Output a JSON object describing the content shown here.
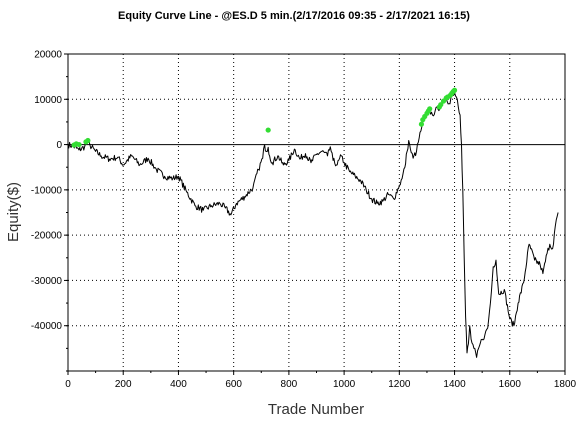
{
  "chart_data": {
    "type": "line",
    "title": "Equity Curve Line - @ES.D 5 min.(2/17/2016 09:35 - 2/17/2021 16:15)",
    "xlabel": "Trade Number",
    "ylabel": "Equity($)",
    "xlim": [
      0,
      1800
    ],
    "ylim": [
      -50000,
      20000
    ],
    "x_ticks": [
      0,
      200,
      400,
      600,
      800,
      1000,
      1200,
      1400,
      1600,
      1800
    ],
    "x_tick_labels": [
      "0",
      "200",
      "400",
      "600",
      "800",
      "1000",
      "1200",
      "1400",
      "1600",
      "1800"
    ],
    "y_ticks": [
      20000,
      10000,
      0,
      -10000,
      -20000,
      -30000,
      -40000
    ],
    "y_tick_labels": [
      "20000",
      "10000",
      "0",
      "-10000",
      "-20000",
      "-30000",
      "-40000"
    ],
    "grid": true,
    "grid_style": "dotted",
    "colors": {
      "line": "#000000",
      "new_high_marker": "#33dd33",
      "grid": "#000000"
    },
    "series": [
      {
        "values": [
          [
            0,
            0
          ],
          [
            20,
            -400
          ],
          [
            40,
            -1200
          ],
          [
            60,
            -500
          ],
          [
            70,
            800
          ],
          [
            80,
            -200
          ],
          [
            100,
            -1500
          ],
          [
            120,
            -2500
          ],
          [
            150,
            -3200
          ],
          [
            180,
            -2800
          ],
          [
            200,
            -4500
          ],
          [
            230,
            -2500
          ],
          [
            260,
            -4500
          ],
          [
            290,
            -3000
          ],
          [
            320,
            -5500
          ],
          [
            350,
            -7000
          ],
          [
            380,
            -7500
          ],
          [
            400,
            -7000
          ],
          [
            430,
            -10500
          ],
          [
            460,
            -13500
          ],
          [
            490,
            -14500
          ],
          [
            520,
            -13500
          ],
          [
            550,
            -13000
          ],
          [
            570,
            -14000
          ],
          [
            590,
            -15500
          ],
          [
            610,
            -13000
          ],
          [
            640,
            -11500
          ],
          [
            670,
            -9500
          ],
          [
            690,
            -5500
          ],
          [
            705,
            -3000
          ],
          [
            712,
            0
          ],
          [
            718,
            -1500
          ],
          [
            725,
            -600
          ],
          [
            730,
            -2500
          ],
          [
            740,
            -4000
          ],
          [
            760,
            -2500
          ],
          [
            780,
            -4500
          ],
          [
            800,
            -3500
          ],
          [
            820,
            -1000
          ],
          [
            840,
            -3200
          ],
          [
            860,
            -2000
          ],
          [
            880,
            -4000
          ],
          [
            900,
            -2200
          ],
          [
            920,
            -1500
          ],
          [
            940,
            -2500
          ],
          [
            950,
            -500
          ],
          [
            960,
            -3500
          ],
          [
            975,
            -4500
          ],
          [
            990,
            -2500
          ],
          [
            1000,
            -4000
          ],
          [
            1020,
            -6000
          ],
          [
            1040,
            -7000
          ],
          [
            1060,
            -8000
          ],
          [
            1080,
            -10000
          ],
          [
            1100,
            -12000
          ],
          [
            1120,
            -13000
          ],
          [
            1140,
            -12500
          ],
          [
            1160,
            -11000
          ],
          [
            1180,
            -12000
          ],
          [
            1200,
            -9000
          ],
          [
            1210,
            -7500
          ],
          [
            1220,
            -5000
          ],
          [
            1228,
            -1500
          ],
          [
            1234,
            900
          ],
          [
            1240,
            -1000
          ],
          [
            1250,
            -3000
          ],
          [
            1262,
            -1500
          ],
          [
            1272,
            1500
          ],
          [
            1278,
            3000
          ],
          [
            1285,
            5000
          ],
          [
            1292,
            5800
          ],
          [
            1300,
            6800
          ],
          [
            1310,
            7500
          ],
          [
            1320,
            6500
          ],
          [
            1330,
            7500
          ],
          [
            1340,
            7800
          ],
          [
            1350,
            8800
          ],
          [
            1360,
            9500
          ],
          [
            1370,
            10200
          ],
          [
            1380,
            9000
          ],
          [
            1390,
            11000
          ],
          [
            1400,
            11500
          ],
          [
            1410,
            10000
          ],
          [
            1420,
            6500
          ],
          [
            1425,
            0
          ],
          [
            1430,
            -10000
          ],
          [
            1435,
            -25000
          ],
          [
            1440,
            -38000
          ],
          [
            1445,
            -46000
          ],
          [
            1450,
            -44000
          ],
          [
            1455,
            -40000
          ],
          [
            1460,
            -43000
          ],
          [
            1470,
            -45000
          ],
          [
            1480,
            -47000
          ],
          [
            1490,
            -44500
          ],
          [
            1500,
            -43000
          ],
          [
            1510,
            -42000
          ],
          [
            1520,
            -40500
          ],
          [
            1530,
            -35000
          ],
          [
            1540,
            -27000
          ],
          [
            1550,
            -25500
          ],
          [
            1560,
            -33000
          ],
          [
            1580,
            -32000
          ],
          [
            1600,
            -38500
          ],
          [
            1615,
            -40000
          ],
          [
            1630,
            -35000
          ],
          [
            1650,
            -30500
          ],
          [
            1670,
            -22000
          ],
          [
            1690,
            -25500
          ],
          [
            1710,
            -26500
          ],
          [
            1720,
            -28500
          ],
          [
            1735,
            -24000
          ],
          [
            1745,
            -22000
          ],
          [
            1755,
            -23000
          ],
          [
            1765,
            -18000
          ],
          [
            1775,
            -15000
          ]
        ]
      }
    ],
    "new_high_markers": [
      [
        22,
        -100
      ],
      [
        30,
        150
      ],
      [
        40,
        0
      ],
      [
        65,
        600
      ],
      [
        72,
        900
      ],
      [
        725,
        3200
      ],
      [
        1280,
        4500
      ],
      [
        1285,
        5500
      ],
      [
        1292,
        6200
      ],
      [
        1300,
        6900
      ],
      [
        1305,
        7400
      ],
      [
        1310,
        7900
      ],
      [
        1345,
        8300
      ],
      [
        1350,
        8800
      ],
      [
        1360,
        9600
      ],
      [
        1370,
        10300
      ],
      [
        1375,
        10500
      ],
      [
        1385,
        10900
      ],
      [
        1390,
        11300
      ],
      [
        1395,
        11700
      ],
      [
        1400,
        12000
      ]
    ]
  }
}
